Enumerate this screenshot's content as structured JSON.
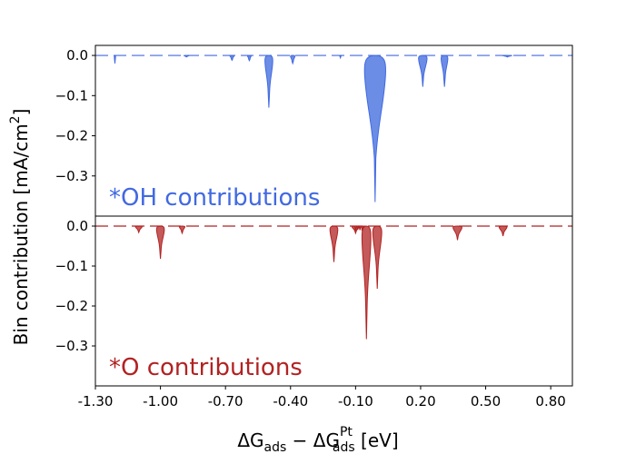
{
  "chart_data": [
    {
      "type": "violin",
      "panel": "top",
      "annotation": "*OH contributions",
      "color": "#4169e1",
      "fill": "#6b8de6",
      "x_range": [
        -1.3,
        0.9
      ],
      "ylim": [
        -0.4,
        0.025
      ],
      "yticks": [
        "0.0",
        "−0.1",
        "−0.2",
        "−0.3"
      ],
      "ytick_values": [
        0.0,
        -0.1,
        -0.2,
        -0.3
      ],
      "baseline": 0.0,
      "violins": [
        {
          "x": -1.21,
          "min": -0.02,
          "width": 0.006
        },
        {
          "x": -0.88,
          "min": -0.004,
          "width": 0.022
        },
        {
          "x": -0.67,
          "min": -0.012,
          "width": 0.018
        },
        {
          "x": -0.59,
          "min": -0.013,
          "width": 0.016
        },
        {
          "x": -0.5,
          "min": -0.13,
          "width": 0.035
        },
        {
          "x": -0.39,
          "min": -0.02,
          "width": 0.02
        },
        {
          "x": -0.17,
          "min": -0.006,
          "width": 0.01
        },
        {
          "x": -0.01,
          "min": -0.365,
          "width": 0.095
        },
        {
          "x": 0.21,
          "min": -0.078,
          "width": 0.038
        },
        {
          "x": 0.31,
          "min": -0.078,
          "width": 0.03
        },
        {
          "x": 0.6,
          "min": -0.004,
          "width": 0.04
        }
      ]
    },
    {
      "type": "violin",
      "panel": "bottom",
      "annotation": "*O contributions",
      "color": "#b22222",
      "fill": "#c45a5a",
      "x_range": [
        -1.3,
        0.9
      ],
      "xticks": [
        "-1.30",
        "-1.00",
        "-0.70",
        "-0.40",
        "-0.10",
        "0.20",
        "0.50",
        "0.80"
      ],
      "xtick_values": [
        -1.3,
        -1.0,
        -0.7,
        -0.4,
        -0.1,
        0.2,
        0.5,
        0.8
      ],
      "ylim": [
        -0.4,
        0.025
      ],
      "yticks": [
        "0.0",
        "−0.1",
        "−0.2",
        "−0.3"
      ],
      "ytick_values": [
        0.0,
        -0.1,
        -0.2,
        -0.3
      ],
      "baseline": 0.0,
      "violins": [
        {
          "x": -1.1,
          "min": -0.016,
          "width": 0.03
        },
        {
          "x": -1.0,
          "min": -0.082,
          "width": 0.035
        },
        {
          "x": -0.9,
          "min": -0.018,
          "width": 0.025
        },
        {
          "x": -0.2,
          "min": -0.09,
          "width": 0.035
        },
        {
          "x": -0.1,
          "min": -0.018,
          "width": 0.032
        },
        {
          "x": -0.08,
          "min": -0.008,
          "width": 0.012
        },
        {
          "x": -0.09,
          "min": -0.008,
          "width": 0.01
        },
        {
          "x": -0.06,
          "min": -0.009,
          "width": 0.01
        },
        {
          "x": -0.1,
          "min": -0.012,
          "width": 0.01
        },
        {
          "x": -0.07,
          "min": -0.012,
          "width": 0.012
        },
        {
          "x": -0.08,
          "min": -0.01,
          "width": 0.01
        },
        {
          "x": -0.09,
          "min": -0.009,
          "width": 0.01
        },
        {
          "x": -0.05,
          "min": -0.283,
          "width": 0.04
        },
        {
          "x": 0.0,
          "min": -0.157,
          "width": 0.04
        },
        {
          "x": 0.37,
          "min": -0.035,
          "width": 0.04
        },
        {
          "x": 0.58,
          "min": -0.025,
          "width": 0.035
        }
      ]
    }
  ],
  "xlabel": {
    "main": "ΔG",
    "sub1": "ads",
    "minus": " − ΔG",
    "sup2": "Pt",
    "sub2": "ads",
    "unit": " [eV]"
  },
  "ylabel": "Bin contribution [mA/cm",
  "ylabel_sup": "2",
  "ylabel_end": "]"
}
